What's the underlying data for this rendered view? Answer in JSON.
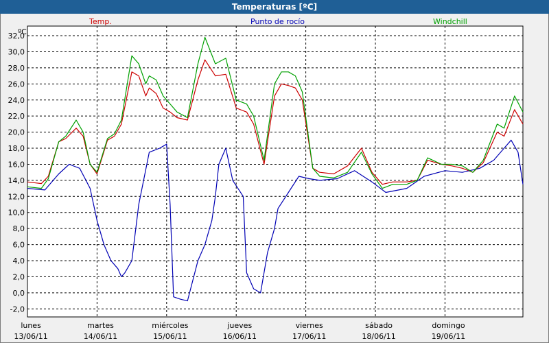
{
  "window": {
    "title": "Temperaturas [ºC]"
  },
  "chart_data": {
    "type": "line",
    "unit": "ºC",
    "ylim": [
      -3,
      33.2
    ],
    "yticks": [
      -2,
      0,
      2,
      4,
      6,
      8,
      10,
      12,
      14,
      16,
      18,
      20,
      22,
      24,
      26,
      28,
      30,
      32
    ],
    "ytick_labels": [
      "-2,0",
      "0,0",
      "2,0",
      "4,0",
      "6,0",
      "8,0",
      "10,0",
      "12,0",
      "14,0",
      "16,0",
      "18,0",
      "20,0",
      "22,0",
      "24,0",
      "26,0",
      "28,0",
      "30,0",
      "32,0"
    ],
    "xlim": [
      0,
      7.12
    ],
    "grid": true,
    "legend": "top",
    "days": [
      {
        "day": "lunes",
        "date": "13/06/11"
      },
      {
        "day": "martes",
        "date": "14/06/11"
      },
      {
        "day": "miércoles",
        "date": "15/06/11"
      },
      {
        "day": "jueves",
        "date": "16/06/11"
      },
      {
        "day": "viernes",
        "date": "17/06/11"
      },
      {
        "day": "sábado",
        "date": "18/06/11"
      },
      {
        "day": "domingo",
        "date": "19/06/11"
      }
    ],
    "series": [
      {
        "name": "Temp.",
        "color": "#cc0000",
        "x": [
          0,
          0.2,
          0.3,
          0.45,
          0.55,
          0.7,
          0.8,
          0.9,
          1.0,
          1.15,
          1.25,
          1.35,
          1.5,
          1.6,
          1.7,
          1.75,
          1.85,
          1.95,
          2.05,
          2.15,
          2.3,
          2.45,
          2.55,
          2.7,
          2.85,
          3.0,
          3.15,
          3.25,
          3.4,
          3.55,
          3.65,
          3.75,
          3.85,
          3.95,
          4.1,
          4.2,
          4.4,
          4.6,
          4.8,
          4.95,
          5.1,
          5.25,
          5.45,
          5.6,
          5.75,
          5.95,
          6.1,
          6.25,
          6.4,
          6.55,
          6.75,
          6.85,
          7.0,
          7.12
        ],
        "y": [
          13.8,
          13.6,
          14.5,
          18.8,
          19.2,
          20.5,
          19.5,
          16.0,
          14.8,
          19.0,
          19.5,
          21.0,
          27.5,
          27.0,
          24.5,
          25.5,
          24.8,
          23.0,
          22.5,
          21.8,
          21.5,
          26.5,
          29.0,
          27.0,
          27.2,
          23.0,
          22.5,
          21.0,
          16.0,
          24.5,
          26.0,
          25.8,
          25.5,
          24.0,
          15.5,
          15.0,
          14.8,
          15.8,
          18.0,
          15.0,
          13.5,
          13.8,
          13.8,
          14.0,
          16.5,
          16.0,
          15.8,
          15.5,
          15.0,
          16.2,
          20.0,
          19.5,
          22.8,
          21.0
        ]
      },
      {
        "name": "Punto de rocío",
        "color": "#0000b4",
        "x": [
          0,
          0.25,
          0.45,
          0.6,
          0.75,
          0.9,
          1.0,
          1.1,
          1.2,
          1.3,
          1.35,
          1.4,
          1.5,
          1.6,
          1.75,
          1.9,
          2.0,
          2.05,
          2.1,
          2.2,
          2.3,
          2.45,
          2.55,
          2.65,
          2.7,
          2.75,
          2.85,
          2.95,
          3.1,
          3.15,
          3.25,
          3.35,
          3.45,
          3.55,
          3.6,
          3.75,
          3.9,
          4.05,
          4.2,
          4.45,
          4.7,
          4.95,
          5.15,
          5.45,
          5.7,
          6.0,
          6.25,
          6.5,
          6.7,
          6.85,
          6.95,
          7.05,
          7.12
        ],
        "y": [
          13.0,
          12.8,
          14.8,
          16.0,
          15.5,
          13.0,
          9.0,
          6.0,
          4.0,
          3.0,
          2.0,
          2.5,
          4.0,
          11.0,
          17.5,
          18.0,
          18.5,
          11.0,
          -0.5,
          -0.8,
          -1.0,
          4.0,
          6.0,
          9.0,
          12.0,
          16.0,
          18.0,
          14.0,
          12.0,
          2.5,
          0.5,
          0.0,
          5.0,
          8.0,
          10.5,
          12.5,
          14.5,
          14.2,
          14.0,
          14.2,
          15.2,
          13.8,
          12.5,
          13.0,
          14.5,
          15.2,
          15.0,
          15.5,
          16.5,
          18.0,
          19.0,
          17.5,
          13.5
        ]
      },
      {
        "name": "Windchill",
        "color": "#00a000",
        "x": [
          0,
          0.2,
          0.3,
          0.45,
          0.55,
          0.7,
          0.8,
          0.9,
          1.0,
          1.15,
          1.25,
          1.35,
          1.5,
          1.6,
          1.7,
          1.75,
          1.85,
          1.95,
          2.05,
          2.15,
          2.3,
          2.45,
          2.55,
          2.7,
          2.85,
          3.0,
          3.15,
          3.25,
          3.4,
          3.55,
          3.65,
          3.75,
          3.85,
          3.95,
          4.1,
          4.2,
          4.4,
          4.6,
          4.8,
          4.95,
          5.1,
          5.25,
          5.45,
          5.6,
          5.75,
          5.95,
          6.1,
          6.25,
          6.4,
          6.55,
          6.75,
          6.85,
          7.0,
          7.12
        ],
        "y": [
          13.2,
          13.0,
          14.2,
          18.8,
          19.5,
          21.5,
          20.0,
          16.0,
          15.0,
          19.2,
          19.8,
          21.5,
          29.5,
          28.5,
          26.0,
          27.0,
          26.5,
          24.5,
          23.5,
          22.5,
          21.8,
          28.5,
          31.8,
          28.5,
          29.2,
          24.0,
          23.5,
          22.0,
          16.5,
          26.0,
          27.5,
          27.5,
          27.0,
          25.0,
          15.5,
          14.5,
          14.3,
          15.0,
          17.5,
          14.8,
          13.0,
          13.5,
          13.5,
          14.0,
          16.8,
          16.0,
          16.0,
          15.8,
          15.0,
          16.5,
          21.0,
          20.5,
          24.5,
          22.5
        ]
      }
    ]
  }
}
